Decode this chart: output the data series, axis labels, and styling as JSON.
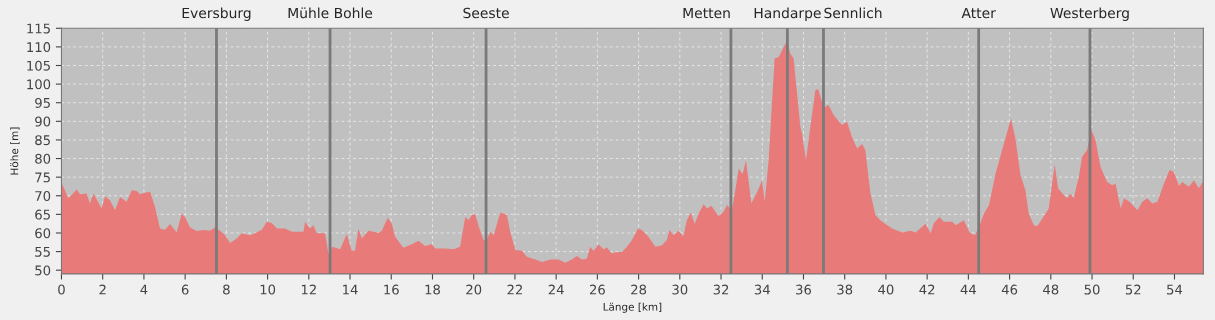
{
  "chart_data": {
    "type": "area",
    "xlabel": "Länge [km]",
    "ylabel": "Höhe [m]",
    "xlim": [
      0,
      55.4
    ],
    "ylim": [
      49,
      115
    ],
    "xticks": [
      0,
      2,
      4,
      6,
      8,
      10,
      12,
      14,
      16,
      18,
      20,
      22,
      24,
      26,
      28,
      30,
      32,
      34,
      36,
      38,
      40,
      42,
      44,
      46,
      48,
      50,
      52,
      54
    ],
    "yticks": [
      50,
      55,
      60,
      65,
      70,
      75,
      80,
      85,
      90,
      95,
      100,
      105,
      110,
      115
    ],
    "grid": true,
    "x": [
      0,
      0.17,
      0.33,
      0.49,
      0.74,
      0.9,
      1.22,
      1.38,
      1.55,
      1.95,
      2.11,
      2.35,
      2.6,
      2.84,
      3.16,
      3.41,
      3.65,
      3.81,
      4.05,
      4.3,
      4.54,
      4.78,
      5.03,
      5.27,
      5.59,
      5.83,
      5.99,
      6.24,
      6.56,
      6.89,
      7.2,
      7.45,
      7.69,
      7.94,
      8.18,
      8.5,
      8.75,
      9.15,
      9.39,
      9.72,
      9.96,
      10.2,
      10.45,
      10.85,
      11.17,
      11.74,
      11.82,
      12.06,
      12.22,
      12.39,
      12.79,
      12.95,
      13.15,
      13.52,
      13.84,
      14.08,
      14.24,
      14.41,
      14.57,
      14.89,
      15.14,
      15.38,
      15.54,
      15.83,
      16.03,
      16.19,
      16.59,
      17.0,
      17.32,
      17.64,
      17.97,
      18.13,
      18.61,
      19.02,
      19.34,
      19.59,
      19.75,
      19.91,
      20.07,
      20.24,
      20.48,
      20.64,
      20.8,
      20.97,
      21.29,
      21.61,
      21.77,
      22.02,
      22.34,
      22.58,
      22.99,
      23.31,
      23.72,
      24.12,
      24.44,
      24.76,
      25.01,
      25.25,
      25.49,
      25.65,
      25.81,
      26.06,
      26.3,
      26.46,
      26.71,
      26.95,
      27.19,
      27.44,
      27.68,
      27.97,
      28.16,
      28.48,
      28.81,
      29.13,
      29.37,
      29.5,
      29.69,
      29.94,
      30.18,
      30.34,
      30.54,
      30.72,
      30.91,
      31.16,
      31.32,
      31.53,
      31.88,
      32.13,
      32.29,
      32.53,
      32.86,
      33.05,
      33.21,
      33.47,
      33.79,
      33.99,
      34.12,
      34.31,
      34.6,
      34.8,
      35.04,
      35.2,
      35.36,
      35.52,
      35.85,
      35.93,
      36.12,
      36.33,
      36.58,
      36.71,
      36.98,
      37.22,
      37.46,
      37.87,
      38.11,
      38.35,
      38.6,
      38.84,
      39.0,
      39.25,
      39.49,
      39.73,
      39.98,
      40.3,
      40.79,
      41.19,
      41.44,
      41.92,
      42.17,
      42.33,
      42.6,
      42.81,
      43.22,
      43.38,
      43.78,
      44.06,
      44.32,
      44.51,
      44.75,
      45.0,
      45.32,
      45.64,
      46.07,
      46.29,
      46.53,
      46.77,
      46.93,
      47.18,
      47.34,
      47.74,
      47.9,
      48.19,
      48.35,
      48.63,
      48.79,
      48.95,
      49.11,
      49.36,
      49.52,
      49.76,
      49.97,
      50.17,
      50.41,
      50.73,
      50.98,
      51.14,
      51.39,
      51.55,
      51.82,
      52.2,
      52.44,
      52.68,
      52.92,
      53.17,
      53.49,
      53.76,
      53.97,
      54.22,
      54.38,
      54.7,
      54.94,
      55.18,
      55.4
    ],
    "series": [
      {
        "color": "#e87a7a",
        "values": [
          73.5,
          71.5,
          69.3,
          70.2,
          71.7,
          70.4,
          70.6,
          67.9,
          70.6,
          66.6,
          69.9,
          68.8,
          66.1,
          69.7,
          68.4,
          71.5,
          71.3,
          70.4,
          70.8,
          71.1,
          67.0,
          61.2,
          60.9,
          62.4,
          60.1,
          65.2,
          64.3,
          61.5,
          60.5,
          60.8,
          60.6,
          61.5,
          60.6,
          59.4,
          57.3,
          58.5,
          59.9,
          59.4,
          59.9,
          60.9,
          63.0,
          62.7,
          61.2,
          61.2,
          60.3,
          60.3,
          63.0,
          61.2,
          62.1,
          59.9,
          59.9,
          54.5,
          56.3,
          55.6,
          59.7,
          55.2,
          55.2,
          61.2,
          58.5,
          60.6,
          60.3,
          60.0,
          60.6,
          64.1,
          62.5,
          59.0,
          56.0,
          57.0,
          57.9,
          56.5,
          57.0,
          55.8,
          55.8,
          55.6,
          56.3,
          64.3,
          63.4,
          64.8,
          65.1,
          61.8,
          58.1,
          58.1,
          60.3,
          59.4,
          65.5,
          64.8,
          60.3,
          55.4,
          55.2,
          53.6,
          52.9,
          52.2,
          52.9,
          52.9,
          52.0,
          52.9,
          53.8,
          52.9,
          53.1,
          56.3,
          55.2,
          56.9,
          55.6,
          56.1,
          54.5,
          54.9,
          54.9,
          56.3,
          58.1,
          61.2,
          60.8,
          59.0,
          56.3,
          56.7,
          58.1,
          60.9,
          59.4,
          60.6,
          59.1,
          63.4,
          65.5,
          62.4,
          65.2,
          67.7,
          66.6,
          67.3,
          64.5,
          65.7,
          67.5,
          66.1,
          77.3,
          75.8,
          79.6,
          67.9,
          71.5,
          74.2,
          68.4,
          79.6,
          106.9,
          107.3,
          110.0,
          111.6,
          108.2,
          106.9,
          88.5,
          86.7,
          79.6,
          88.5,
          98.4,
          98.6,
          93.7,
          94.4,
          91.7,
          89.0,
          89.9,
          85.8,
          82.7,
          83.9,
          82.3,
          70.6,
          64.8,
          63.4,
          62.4,
          61.2,
          60.1,
          60.6,
          60.1,
          62.5,
          59.9,
          62.7,
          64.3,
          63.0,
          63.0,
          62.1,
          63.4,
          60.1,
          59.4,
          61.5,
          65.2,
          67.5,
          76.0,
          82.3,
          90.8,
          85.1,
          75.5,
          71.5,
          65.2,
          62.1,
          61.8,
          65.2,
          66.6,
          78.5,
          72.0,
          70.2,
          69.3,
          70.6,
          69.3,
          75.1,
          80.5,
          82.3,
          87.8,
          84.9,
          77.8,
          73.7,
          72.8,
          73.3,
          66.6,
          69.3,
          68.4,
          66.1,
          68.4,
          69.3,
          67.9,
          68.4,
          73.3,
          76.9,
          76.4,
          72.6,
          73.7,
          72.4,
          74.2,
          72.0,
          74.0
        ]
      }
    ],
    "ref_lines": [
      {
        "axis": "x",
        "value": 7.52,
        "label": "Eversburg",
        "color": "#7a7a7a"
      },
      {
        "axis": "x",
        "value": 13.03,
        "label": "Mühle Bohle",
        "color": "#7a7a7a"
      },
      {
        "axis": "x",
        "value": 20.6,
        "label": "Seeste",
        "color": "#7a7a7a"
      },
      {
        "axis": "x",
        "value": 32.48,
        "label": "Metten",
        "color": "#7a7a7a"
      },
      {
        "axis": "x",
        "value": 35.22,
        "label": "Handarpe",
        "color": "#7a7a7a"
      },
      {
        "axis": "x",
        "value": 36.97,
        "label": "Sennlich",
        "color": "#7a7a7a"
      },
      {
        "axis": "x",
        "value": 44.5,
        "label": "Atter",
        "color": "#7a7a7a"
      },
      {
        "axis": "x",
        "value": 49.9,
        "label": "Westerberg",
        "color": "#7a7a7a"
      }
    ]
  }
}
